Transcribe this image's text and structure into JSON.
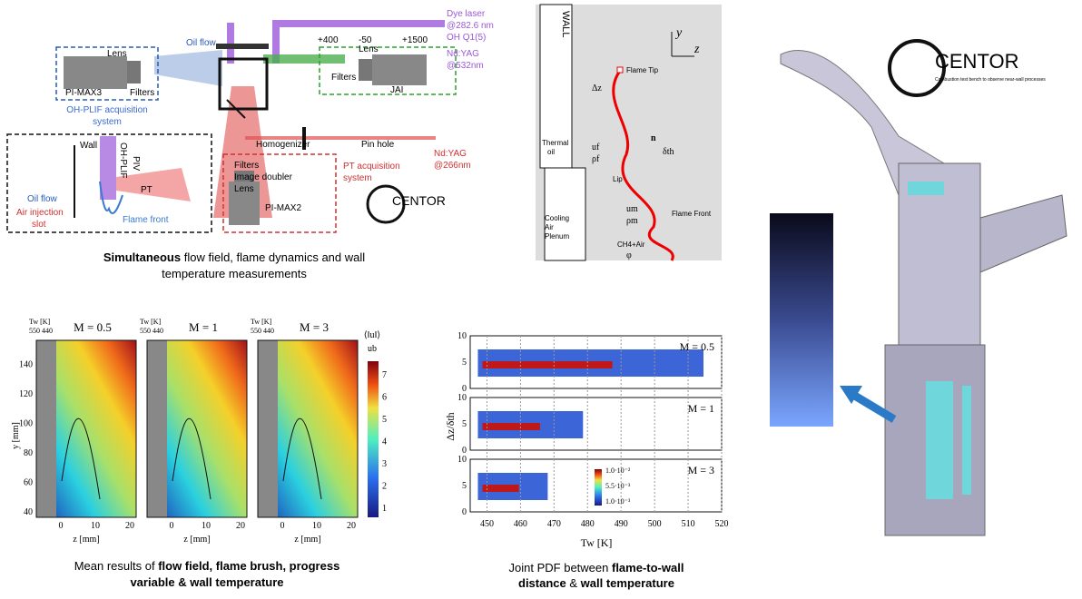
{
  "setup": {
    "oil_flow": "Oil flow",
    "ohplif_box": {
      "lens": "Lens",
      "filters": "Filters",
      "camera": "PI-MAX3"
    },
    "ohplif_system": [
      "OH-PLIF acquisition",
      "system"
    ],
    "jai_box": {
      "lens": "Lens",
      "filters": "Filters",
      "camera": "JAI"
    },
    "dye_laser": [
      "Dye laser",
      "@282.6 nm",
      "OH Q1(5)"
    ],
    "ndyag532": [
      "Nd:YAG",
      "@532nm"
    ],
    "lens_positions": [
      "+400",
      "-50",
      "+1500"
    ],
    "homogenizer": "Homogenizer",
    "pin_hole": "Pin hole",
    "ndyag266": [
      "Nd:YAG",
      "@266nm"
    ],
    "pt_box": {
      "filters": "Filters",
      "doubler": "Image doubler",
      "lens": "Lens",
      "camera": "PI-MAX2"
    },
    "pt_system": [
      "PT acquisition",
      "system"
    ],
    "inset": {
      "wall": "Wall",
      "oil_flow": "Oil flow",
      "air_injection": [
        "Air injection",
        "slot"
      ],
      "pt": "PT",
      "flame_front": "Flame front",
      "ohplif": "OH-PLIF",
      "piv": "PIV"
    },
    "logo": "CENTOR",
    "caption": {
      "bold": "Simultaneous",
      "rest": " flow field, flame dynamics and wall",
      "line2": "temperature measurements"
    }
  },
  "schematic": {
    "wall": "WALL",
    "thermal_oil": [
      "Thermal",
      "oil"
    ],
    "dz": "Δz",
    "flame_tip": "Flame Tip",
    "n": "n",
    "dth": "δth",
    "uf": "uf",
    "rhof": "ρf",
    "lip": "Lip",
    "flame_front": "Flame Front",
    "um": "um",
    "rhom": "ρm",
    "mixture": "CH4+Air",
    "phi": "φ",
    "plenum": [
      "Cooling",
      "Air",
      "Plenum"
    ],
    "y": "y",
    "z": "z"
  },
  "mean": {
    "panels": [
      {
        "title": "M = 0.5"
      },
      {
        "title": "M = 1"
      },
      {
        "title": "M = 3"
      }
    ],
    "tw_label": "Tw [K]",
    "tw_ticks": "550 440",
    "yticks": [
      "40",
      "60",
      "80",
      "100",
      "120",
      "140"
    ],
    "xticks": [
      "0",
      "10",
      "20"
    ],
    "ylabel": "y [mm]",
    "xlabel": "z [mm]",
    "cbar_ticks": [
      "1",
      "2",
      "3",
      "4",
      "5",
      "6",
      "7"
    ],
    "cbar_label": [
      "⟨‖u‖⟩",
      "ub"
    ],
    "caption": {
      "a": "Mean results of ",
      "b": "flow field, flame brush, progress",
      "c": "variable & wall temperature"
    }
  },
  "pdf": {
    "panels": [
      {
        "title": "M = 0.5"
      },
      {
        "title": "M = 1"
      },
      {
        "title": "M = 3"
      }
    ],
    "yticks": [
      "0",
      "5",
      "10"
    ],
    "xticks": [
      "450",
      "460",
      "470",
      "480",
      "490",
      "500",
      "510",
      "520"
    ],
    "ylabel": "Δz/δth",
    "xlabel": "Tw [K]",
    "cbar_ticks": [
      "1.0·10⁻²",
      "5.5·10⁻³",
      "1.0·10⁻³"
    ],
    "caption": {
      "a": "Joint PDF between ",
      "b": "flame-to-wall",
      "c": "distance",
      "d": " & ",
      "e": "wall temperature"
    }
  },
  "rig": {
    "logo": "CENTOR",
    "tagline": "Combustion test bench to observe near-wall processes"
  }
}
